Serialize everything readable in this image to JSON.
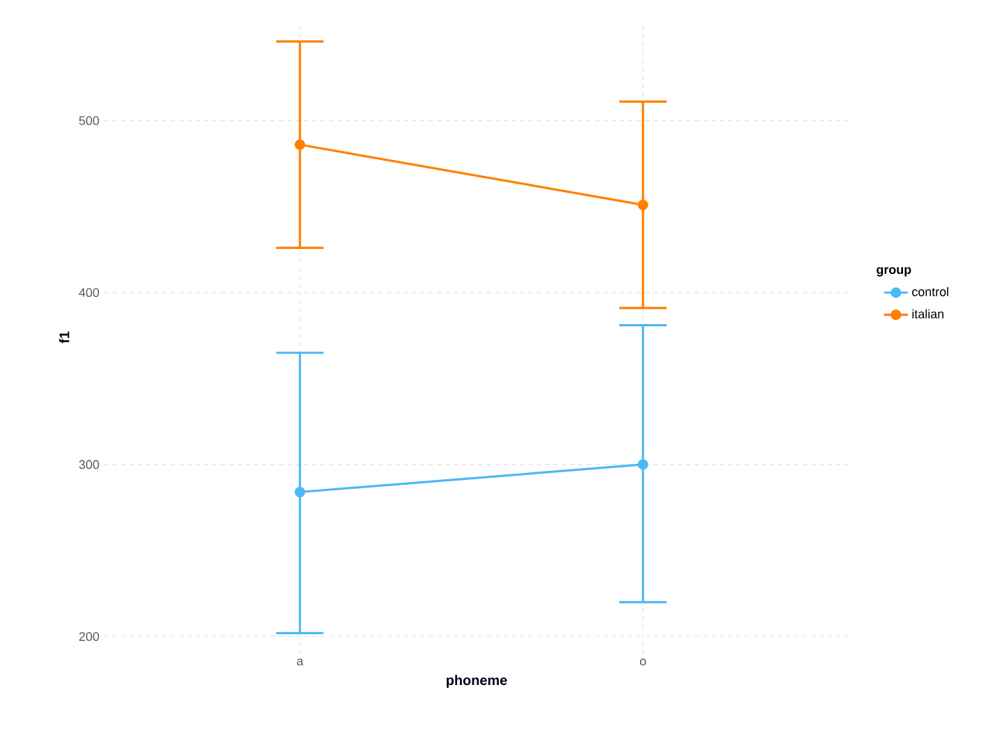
{
  "chart_data": {
    "type": "line",
    "xlabel": "phoneme",
    "ylabel": "f1",
    "legend_title": "group",
    "categories": [
      "a",
      "o"
    ],
    "series": [
      {
        "name": "control",
        "color": "#4cb8f5",
        "values": [
          284,
          300
        ],
        "errors": [
          [
            202,
            365
          ],
          [
            220,
            381
          ]
        ]
      },
      {
        "name": "italian",
        "color": "#ff7f00",
        "values": [
          486,
          451
        ],
        "errors": [
          [
            426,
            546
          ],
          [
            391,
            511
          ]
        ]
      }
    ],
    "ylim": [
      190,
      558
    ],
    "yticks": [
      200,
      300,
      400,
      500
    ],
    "grid": true,
    "legend": "right",
    "marker": "circle",
    "line_style": "solid"
  }
}
